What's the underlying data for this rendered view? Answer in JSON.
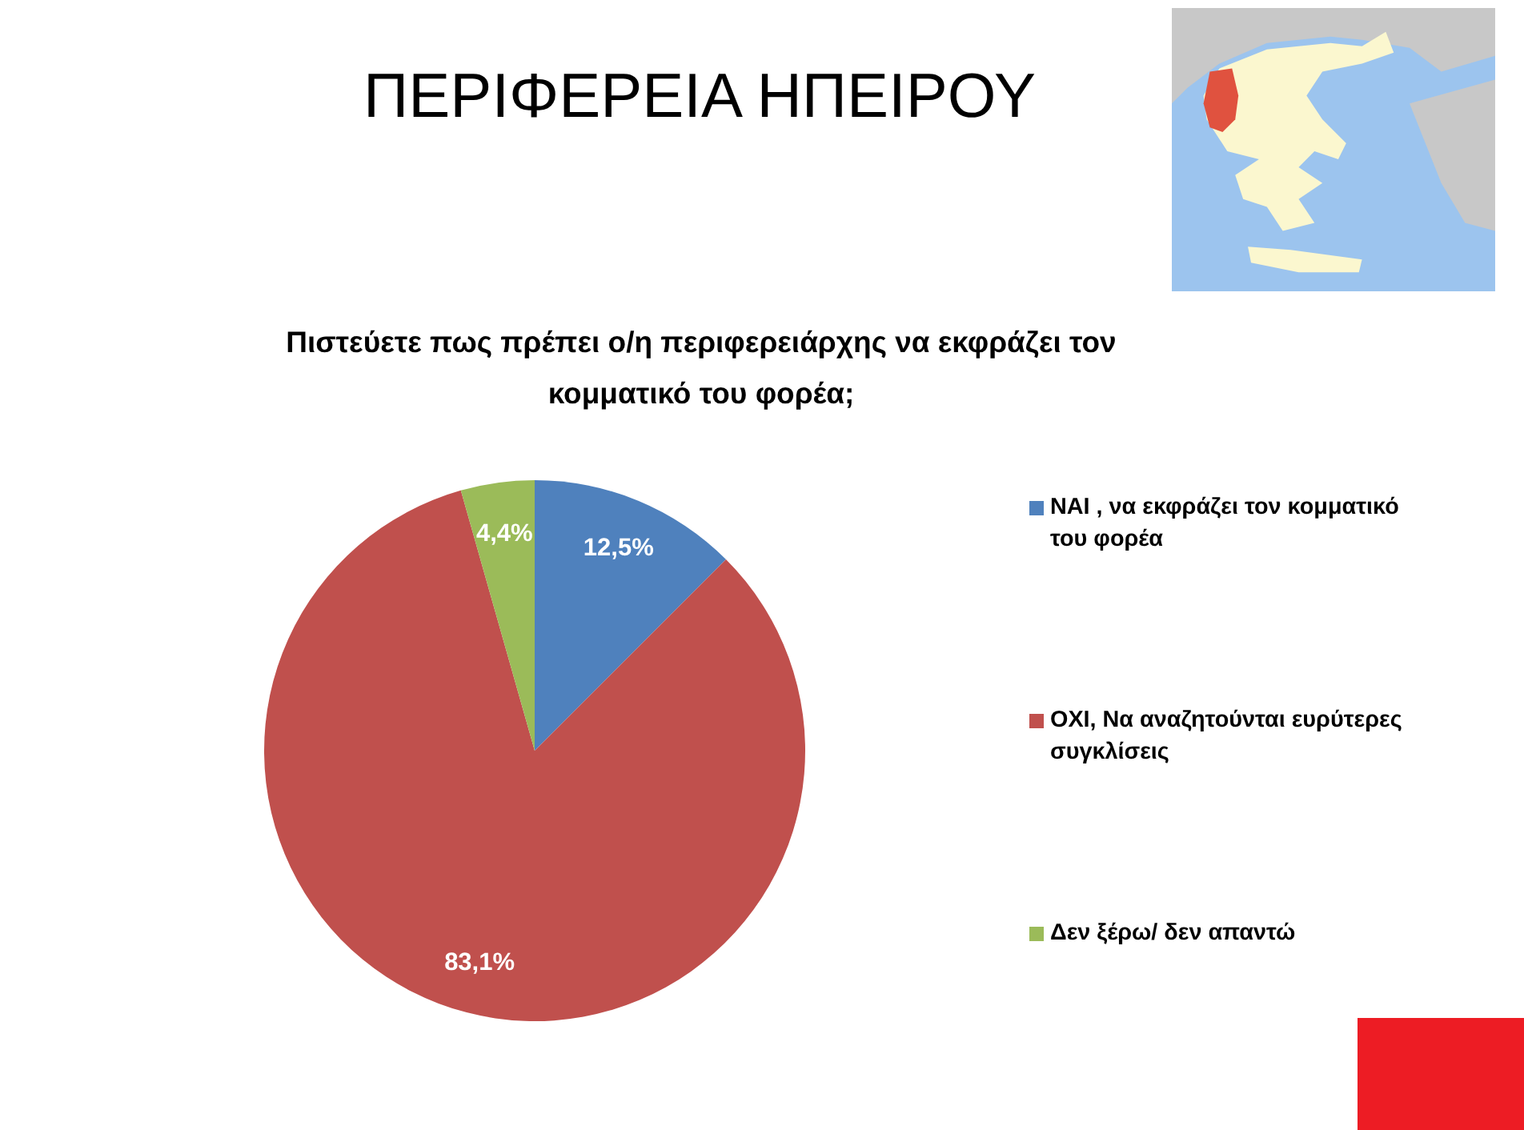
{
  "chart_data": {
    "type": "pie",
    "title": "ΠΕΡΙΦΕΡΕΙΑ ΗΠΕΙΡΟΥ",
    "subtitle": "Πιστεύετε πως πρέπει ο/η περιφερειάρχης να εκφράζει τον κομματικό του φορέα;",
    "categories": [
      "ΝΑΙ , να εκφράζει τον κομματικό του φορέα",
      "ΟΧΙ, Να αναζητούνται ευρύτερες συγκλίσεις",
      "Δεν ξέρω/ δεν απαντώ"
    ],
    "values": [
      12.5,
      83.1,
      4.4
    ],
    "colors": [
      "#4f81bd",
      "#c0504d",
      "#9bbb59"
    ],
    "value_labels": [
      "12,5%",
      "83,1%",
      "4,4%"
    ],
    "legend": "right"
  }
}
